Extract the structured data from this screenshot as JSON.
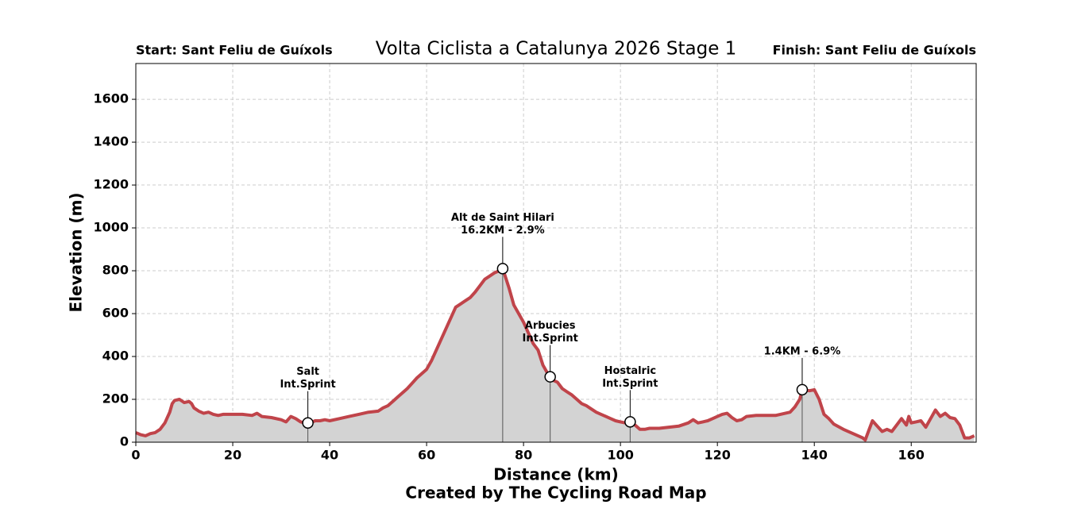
{
  "chart_data": {
    "type": "elevation-profile",
    "title": "Volta Ciclista a Catalunya 2026 Stage 1",
    "start_label": "Start: Sant Feliu de Guíxols",
    "finish_label": "Finish: Sant Feliu de Guíxols",
    "xlabel": "Distance (km)",
    "ylabel": "Elevation (m)",
    "caption": "Created by The Cycling Road Map",
    "xlim": [
      0,
      173.4
    ],
    "ylim": [
      0,
      1767
    ],
    "xticks": [
      0,
      20,
      40,
      60,
      80,
      100,
      120,
      140,
      160
    ],
    "yticks": [
      0,
      200,
      400,
      600,
      800,
      1000,
      1200,
      1400,
      1600
    ],
    "grid": true,
    "profile": {
      "color": "#c0444a",
      "fill": "#d3d3d3",
      "x": [
        0,
        1,
        2,
        3,
        4,
        5,
        6,
        7,
        7.5,
        8,
        9,
        10,
        11,
        11.5,
        12,
        13,
        14,
        15,
        16,
        17,
        18,
        20,
        22,
        24,
        25,
        26,
        28,
        30,
        31,
        32,
        33,
        34,
        35,
        36,
        37,
        38,
        39,
        40,
        42,
        44,
        46,
        48,
        50,
        51,
        52,
        53,
        54,
        55,
        56,
        57,
        58,
        59,
        60,
        61,
        62,
        63,
        64,
        65,
        66,
        67,
        68,
        69,
        70,
        71,
        72,
        73,
        74,
        75,
        75.7,
        76,
        77,
        78,
        79,
        80,
        81,
        82,
        83,
        84,
        85,
        85.5,
        86,
        87,
        88,
        89,
        90,
        91,
        92,
        93,
        94,
        95,
        96,
        97,
        98,
        99,
        100,
        101,
        102,
        103,
        104,
        105,
        106,
        108,
        110,
        112,
        114,
        115,
        116,
        117,
        118,
        119,
        120,
        121,
        122,
        123,
        124,
        125,
        126,
        128,
        130,
        132,
        134,
        135,
        136,
        137,
        137.5,
        139,
        140,
        141,
        142,
        143,
        144,
        146,
        148,
        150,
        150.5,
        151,
        152,
        153,
        154,
        155,
        156,
        157,
        158,
        159,
        159.5,
        160,
        161,
        162,
        163,
        164,
        165,
        166,
        167,
        168,
        169,
        170,
        171,
        172,
        173
      ],
      "values": [
        45,
        35,
        30,
        40,
        45,
        60,
        90,
        140,
        180,
        195,
        200,
        185,
        190,
        180,
        160,
        145,
        135,
        140,
        130,
        125,
        130,
        130,
        130,
        125,
        135,
        120,
        115,
        105,
        95,
        120,
        110,
        95,
        90,
        90,
        100,
        100,
        105,
        100,
        110,
        120,
        130,
        140,
        145,
        160,
        170,
        190,
        210,
        230,
        250,
        275,
        300,
        320,
        340,
        380,
        430,
        480,
        530,
        580,
        630,
        645,
        660,
        675,
        700,
        730,
        760,
        775,
        790,
        800,
        810,
        790,
        720,
        640,
        600,
        560,
        510,
        460,
        430,
        360,
        320,
        305,
        290,
        280,
        250,
        235,
        220,
        200,
        180,
        170,
        155,
        140,
        130,
        120,
        110,
        100,
        95,
        90,
        95,
        80,
        60,
        60,
        65,
        65,
        70,
        75,
        90,
        105,
        90,
        95,
        100,
        110,
        120,
        130,
        135,
        115,
        100,
        105,
        120,
        125,
        125,
        125,
        135,
        140,
        165,
        200,
        245,
        240,
        245,
        200,
        130,
        110,
        85,
        60,
        40,
        20,
        10,
        40,
        100,
        75,
        50,
        60,
        50,
        80,
        110,
        80,
        120,
        90,
        95,
        100,
        70,
        110,
        150,
        120,
        135,
        115,
        110,
        80,
        20,
        20,
        30
      ]
    },
    "annotations": [
      {
        "x": 35.5,
        "elevation": 90,
        "lines": [
          "Salt",
          "Int.Sprint"
        ]
      },
      {
        "x": 75.7,
        "elevation": 810,
        "lines": [
          "Alt de Saint Hilari",
          "16.2KM - 2.9%"
        ]
      },
      {
        "x": 85.5,
        "elevation": 305,
        "lines": [
          "Arbucies",
          "Int.Sprint"
        ]
      },
      {
        "x": 102,
        "elevation": 95,
        "lines": [
          "Hostalric",
          "Int.Sprint"
        ]
      },
      {
        "x": 137.5,
        "elevation": 245,
        "lines": [
          "1.4KM - 6.9%"
        ]
      }
    ]
  }
}
